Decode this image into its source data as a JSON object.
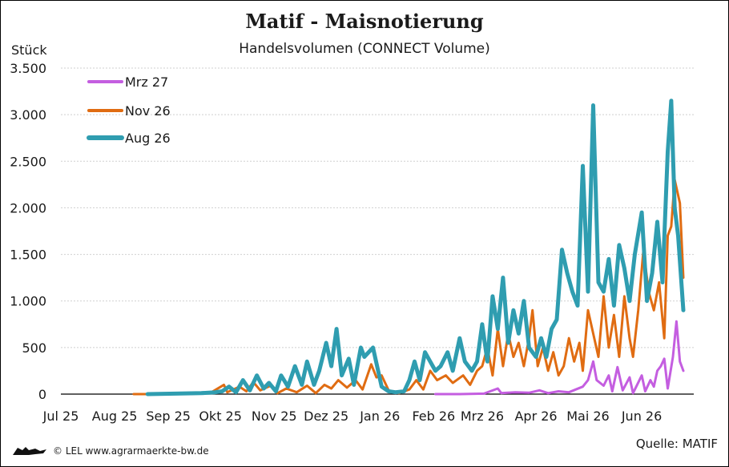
{
  "chart_data": {
    "type": "line",
    "title": "Matif - Maisnotierung",
    "subtitle": "Handelsvolumen (CONNECT Volume)",
    "ylabel": "Stück",
    "ylim": [
      0,
      3500
    ],
    "yticks": [
      0,
      500,
      1000,
      1500,
      2000,
      2500,
      3000,
      3500
    ],
    "ytick_labels": [
      "0",
      "500",
      "1.000",
      "1.500",
      "2.000",
      "2.500",
      "3.000",
      "3.500"
    ],
    "x_months": [
      "2025-07",
      "2025-08",
      "2025-09",
      "2025-10",
      "2025-11",
      "2025-12",
      "2026-01",
      "2026-02",
      "2026-03",
      "2026-04",
      "2026-05",
      "2026-06"
    ],
    "x_labels": [
      "Jul 25",
      "Aug 25",
      "Sep 25",
      "Okt 25",
      "Nov 25",
      "Dez 25",
      "Jan 26",
      "Feb 26",
      "Mrz 26",
      "Apr 26",
      "Mai 26",
      "Jun 26"
    ],
    "grid": true,
    "legend_position": "top-left",
    "series": [
      {
        "name": "Mrz 27",
        "color": "#c45ee0",
        "points": [
          [
            "2026-02-02",
            0
          ],
          [
            "2026-02-16",
            0
          ],
          [
            "2026-03-02",
            5
          ],
          [
            "2026-03-10",
            60
          ],
          [
            "2026-03-12",
            10
          ],
          [
            "2026-03-20",
            20
          ],
          [
            "2026-03-28",
            15
          ],
          [
            "2026-04-03",
            40
          ],
          [
            "2026-04-08",
            10
          ],
          [
            "2026-04-14",
            30
          ],
          [
            "2026-04-20",
            20
          ],
          [
            "2026-04-24",
            50
          ],
          [
            "2026-04-28",
            80
          ],
          [
            "2026-05-01",
            150
          ],
          [
            "2026-05-04",
            350
          ],
          [
            "2026-05-06",
            150
          ],
          [
            "2026-05-10",
            90
          ],
          [
            "2026-05-13",
            200
          ],
          [
            "2026-05-15",
            30
          ],
          [
            "2026-05-18",
            290
          ],
          [
            "2026-05-21",
            40
          ],
          [
            "2026-05-25",
            180
          ],
          [
            "2026-05-27",
            10
          ],
          [
            "2026-06-01",
            200
          ],
          [
            "2026-06-03",
            30
          ],
          [
            "2026-06-06",
            150
          ],
          [
            "2026-06-08",
            80
          ],
          [
            "2026-06-10",
            250
          ],
          [
            "2026-06-12",
            300
          ],
          [
            "2026-06-14",
            380
          ],
          [
            "2026-06-16",
            60
          ],
          [
            "2026-06-19",
            400
          ],
          [
            "2026-06-21",
            780
          ],
          [
            "2026-06-23",
            350
          ],
          [
            "2026-06-25",
            250
          ]
        ]
      },
      {
        "name": "Nov 26",
        "color": "#e06c12",
        "points": [
          [
            "2025-08-12",
            0
          ],
          [
            "2025-08-30",
            0
          ],
          [
            "2025-09-10",
            0
          ],
          [
            "2025-09-25",
            10
          ],
          [
            "2025-10-03",
            100
          ],
          [
            "2025-10-05",
            20
          ],
          [
            "2025-10-12",
            80
          ],
          [
            "2025-10-16",
            30
          ],
          [
            "2025-10-20",
            130
          ],
          [
            "2025-10-24",
            40
          ],
          [
            "2025-10-30",
            90
          ],
          [
            "2025-11-03",
            10
          ],
          [
            "2025-11-08",
            60
          ],
          [
            "2025-11-14",
            20
          ],
          [
            "2025-11-20",
            90
          ],
          [
            "2025-11-25",
            10
          ],
          [
            "2025-11-30",
            100
          ],
          [
            "2025-12-04",
            60
          ],
          [
            "2025-12-08",
            150
          ],
          [
            "2025-12-13",
            70
          ],
          [
            "2025-12-18",
            150
          ],
          [
            "2025-12-22",
            50
          ],
          [
            "2025-12-27",
            320
          ],
          [
            "2025-12-30",
            180
          ],
          [
            "2026-01-02",
            200
          ],
          [
            "2026-01-06",
            40
          ],
          [
            "2026-01-12",
            10
          ],
          [
            "2026-01-18",
            50
          ],
          [
            "2026-01-22",
            150
          ],
          [
            "2026-01-26",
            50
          ],
          [
            "2026-01-30",
            250
          ],
          [
            "2026-02-03",
            150
          ],
          [
            "2026-02-08",
            200
          ],
          [
            "2026-02-12",
            120
          ],
          [
            "2026-02-18",
            200
          ],
          [
            "2026-02-22",
            100
          ],
          [
            "2026-02-26",
            250
          ],
          [
            "2026-03-01",
            300
          ],
          [
            "2026-03-04",
            500
          ],
          [
            "2026-03-07",
            200
          ],
          [
            "2026-03-10",
            700
          ],
          [
            "2026-03-13",
            300
          ],
          [
            "2026-03-16",
            650
          ],
          [
            "2026-03-19",
            400
          ],
          [
            "2026-03-22",
            550
          ],
          [
            "2026-03-25",
            300
          ],
          [
            "2026-03-28",
            600
          ],
          [
            "2026-03-30",
            900
          ],
          [
            "2026-04-02",
            300
          ],
          [
            "2026-04-05",
            500
          ],
          [
            "2026-04-08",
            250
          ],
          [
            "2026-04-11",
            450
          ],
          [
            "2026-04-14",
            200
          ],
          [
            "2026-04-17",
            300
          ],
          [
            "2026-04-20",
            600
          ],
          [
            "2026-04-23",
            350
          ],
          [
            "2026-04-26",
            550
          ],
          [
            "2026-04-28",
            250
          ],
          [
            "2026-05-01",
            900
          ],
          [
            "2026-05-04",
            650
          ],
          [
            "2026-05-07",
            400
          ],
          [
            "2026-05-10",
            1050
          ],
          [
            "2026-05-13",
            500
          ],
          [
            "2026-05-16",
            850
          ],
          [
            "2026-05-19",
            400
          ],
          [
            "2026-05-22",
            1050
          ],
          [
            "2026-05-25",
            600
          ],
          [
            "2026-05-27",
            400
          ],
          [
            "2026-05-30",
            900
          ],
          [
            "2026-06-02",
            1550
          ],
          [
            "2026-06-05",
            1100
          ],
          [
            "2026-06-08",
            900
          ],
          [
            "2026-06-11",
            1200
          ],
          [
            "2026-06-14",
            600
          ],
          [
            "2026-06-16",
            1700
          ],
          [
            "2026-06-18",
            1800
          ],
          [
            "2026-06-20",
            2300
          ],
          [
            "2026-06-23",
            2050
          ],
          [
            "2026-06-25",
            1250
          ]
        ]
      },
      {
        "name": "Aug 26",
        "color": "#2f9db0",
        "points": [
          [
            "2025-08-20",
            0
          ],
          [
            "2025-09-05",
            5
          ],
          [
            "2025-09-20",
            10
          ],
          [
            "2025-09-28",
            20
          ],
          [
            "2025-10-02",
            30
          ],
          [
            "2025-10-06",
            80
          ],
          [
            "2025-10-10",
            20
          ],
          [
            "2025-10-14",
            150
          ],
          [
            "2025-10-18",
            40
          ],
          [
            "2025-10-22",
            200
          ],
          [
            "2025-10-26",
            60
          ],
          [
            "2025-10-29",
            120
          ],
          [
            "2025-11-02",
            30
          ],
          [
            "2025-11-05",
            200
          ],
          [
            "2025-11-09",
            80
          ],
          [
            "2025-11-13",
            300
          ],
          [
            "2025-11-17",
            100
          ],
          [
            "2025-11-20",
            350
          ],
          [
            "2025-11-24",
            100
          ],
          [
            "2025-11-27",
            250
          ],
          [
            "2025-12-01",
            550
          ],
          [
            "2025-12-04",
            300
          ],
          [
            "2025-12-07",
            700
          ],
          [
            "2025-12-10",
            200
          ],
          [
            "2025-12-14",
            380
          ],
          [
            "2025-12-17",
            100
          ],
          [
            "2025-12-21",
            500
          ],
          [
            "2025-12-23",
            400
          ],
          [
            "2025-12-28",
            500
          ],
          [
            "2026-01-02",
            80
          ],
          [
            "2026-01-06",
            30
          ],
          [
            "2026-01-10",
            20
          ],
          [
            "2026-01-15",
            30
          ],
          [
            "2026-01-18",
            150
          ],
          [
            "2026-01-21",
            350
          ],
          [
            "2026-01-24",
            150
          ],
          [
            "2026-01-27",
            450
          ],
          [
            "2026-01-30",
            350
          ],
          [
            "2026-02-02",
            250
          ],
          [
            "2026-02-05",
            300
          ],
          [
            "2026-02-09",
            450
          ],
          [
            "2026-02-12",
            250
          ],
          [
            "2026-02-16",
            600
          ],
          [
            "2026-02-19",
            350
          ],
          [
            "2026-02-23",
            250
          ],
          [
            "2026-02-26",
            350
          ],
          [
            "2026-03-01",
            750
          ],
          [
            "2026-03-04",
            350
          ],
          [
            "2026-03-07",
            1050
          ],
          [
            "2026-03-10",
            700
          ],
          [
            "2026-03-13",
            1250
          ],
          [
            "2026-03-16",
            550
          ],
          [
            "2026-03-19",
            900
          ],
          [
            "2026-03-22",
            650
          ],
          [
            "2026-03-25",
            1000
          ],
          [
            "2026-03-28",
            500
          ],
          [
            "2026-04-01",
            400
          ],
          [
            "2026-04-04",
            600
          ],
          [
            "2026-04-07",
            400
          ],
          [
            "2026-04-10",
            700
          ],
          [
            "2026-04-13",
            800
          ],
          [
            "2026-04-16",
            1550
          ],
          [
            "2026-04-19",
            1300
          ],
          [
            "2026-04-22",
            1100
          ],
          [
            "2026-04-25",
            950
          ],
          [
            "2026-04-28",
            2450
          ],
          [
            "2026-05-01",
            1100
          ],
          [
            "2026-05-04",
            3100
          ],
          [
            "2026-05-07",
            1200
          ],
          [
            "2026-05-10",
            1100
          ],
          [
            "2026-05-13",
            1450
          ],
          [
            "2026-05-16",
            950
          ],
          [
            "2026-05-19",
            1600
          ],
          [
            "2026-05-22",
            1350
          ],
          [
            "2026-05-25",
            1000
          ],
          [
            "2026-05-28",
            1500
          ],
          [
            "2026-06-01",
            1950
          ],
          [
            "2026-06-04",
            1000
          ],
          [
            "2026-06-07",
            1300
          ],
          [
            "2026-06-10",
            1850
          ],
          [
            "2026-06-13",
            1200
          ],
          [
            "2026-06-16",
            2600
          ],
          [
            "2026-06-18",
            3150
          ],
          [
            "2026-06-20",
            2000
          ],
          [
            "2026-06-22",
            1700
          ],
          [
            "2026-06-25",
            900
          ]
        ]
      }
    ]
  },
  "footer": {
    "credit": "© LEL www.agrarmaerkte-bw.de",
    "source": "Quelle: MATIF"
  }
}
